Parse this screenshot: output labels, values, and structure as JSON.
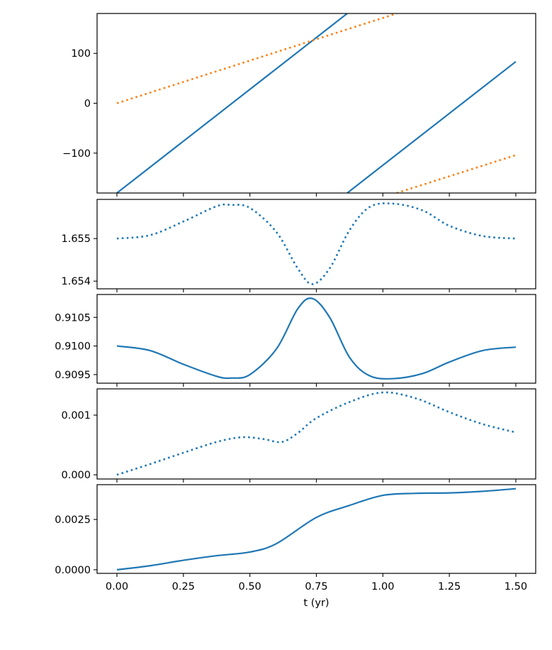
{
  "chart_data": [
    {
      "type": "line",
      "ylim": [
        -180,
        180
      ],
      "yticks": [
        100,
        0,
        -100
      ],
      "ytick_labels": [
        "100",
        "0",
        "−100"
      ],
      "series": [
        {
          "color": "#1f77b4",
          "style": "solid",
          "segments": [
            {
              "x": [
                0,
                0.866
              ],
              "y": [
                -180,
                180
              ]
            },
            {
              "x": [
                0.866,
                1.5
              ],
              "y": [
                -180,
                83.5
              ]
            }
          ]
        },
        {
          "color": "#ff7f0e",
          "style": "dotted",
          "segments": [
            {
              "x": [
                0,
                1.052
              ],
              "y": [
                0,
                180
              ]
            },
            {
              "x": [
                1.052,
                1.5
              ],
              "y": [
                -180,
                -104
              ]
            }
          ]
        }
      ]
    },
    {
      "type": "line",
      "ylim": [
        1.65382,
        1.65592
      ],
      "yticks": [
        1.655,
        1.654
      ],
      "ytick_labels": [
        "1.655",
        "1.654"
      ],
      "series": [
        {
          "color": "#1f77b4",
          "style": "dotted",
          "segments": [
            {
              "x": [
                0,
                0.125,
                0.25,
                0.375,
                0.43,
                0.5,
                0.6,
                0.68,
                0.735,
                0.8,
                0.875,
                0.95,
                1.04,
                1.15,
                1.25,
                1.375,
                1.5
              ],
              "y": [
                1.655,
                1.65508,
                1.6554,
                1.65576,
                1.65579,
                1.65572,
                1.65515,
                1.6543,
                1.65393,
                1.6543,
                1.6552,
                1.65574,
                1.65582,
                1.65566,
                1.6553,
                1.65506,
                1.655
              ]
            }
          ]
        }
      ]
    },
    {
      "type": "line",
      "ylim": [
        0.90935,
        0.9109
      ],
      "yticks": [
        0.9105,
        0.91,
        0.9095
      ],
      "ytick_labels": [
        "0.9105",
        "0.9100",
        "0.9095"
      ],
      "series": [
        {
          "color": "#1f77b4",
          "style": "solid",
          "segments": [
            {
              "x": [
                0,
                0.125,
                0.25,
                0.375,
                0.43,
                0.5,
                0.6,
                0.68,
                0.735,
                0.8,
                0.875,
                0.95,
                1.04,
                1.15,
                1.25,
                1.375,
                1.5
              ],
              "y": [
                0.91,
                0.90992,
                0.90968,
                0.90947,
                0.90944,
                0.9095,
                0.90995,
                0.91065,
                0.91083,
                0.9105,
                0.9098,
                0.90948,
                0.90943,
                0.90952,
                0.90972,
                0.90992,
                0.90998
              ]
            }
          ]
        }
      ]
    },
    {
      "type": "line",
      "ylim": [
        -7e-05,
        0.00144
      ],
      "yticks": [
        0.001,
        0.0
      ],
      "ytick_labels": [
        "0.001",
        "0.000"
      ],
      "series": [
        {
          "color": "#1f77b4",
          "style": "dotted",
          "segments": [
            {
              "x": [
                0,
                0.125,
                0.25,
                0.375,
                0.47,
                0.55,
                0.62,
                0.68,
                0.75,
                0.875,
                1.0,
                1.125,
                1.25,
                1.375,
                1.5
              ],
              "y": [
                0,
                0.00018,
                0.00037,
                0.00055,
                0.00063,
                0.0006,
                0.00055,
                0.0007,
                0.00095,
                0.00122,
                0.00138,
                0.00128,
                0.00105,
                0.00085,
                0.00071
              ]
            }
          ]
        }
      ]
    },
    {
      "type": "line",
      "ylim": [
        -0.00018,
        0.00423
      ],
      "yticks": [
        0.0025,
        0.0
      ],
      "ytick_labels": [
        "0.0025",
        "0.0000"
      ],
      "xlabel": "t (yr)",
      "xticks": [
        0,
        0.25,
        0.5,
        0.75,
        1.0,
        1.25,
        1.5
      ],
      "xtick_labels": [
        "0.00",
        "0.25",
        "0.50",
        "0.75",
        "1.00",
        "1.25",
        "1.50"
      ],
      "series": [
        {
          "color": "#1f77b4",
          "style": "solid",
          "segments": [
            {
              "x": [
                0,
                0.125,
                0.25,
                0.375,
                0.5,
                0.6,
                0.75,
                0.875,
                1.0,
                1.125,
                1.25,
                1.375,
                1.5
              ],
              "y": [
                0,
                0.0002,
                0.00047,
                0.0007,
                0.00088,
                0.0013,
                0.0026,
                0.0032,
                0.0037,
                0.0038,
                0.00382,
                0.0039,
                0.00403
              ]
            }
          ]
        }
      ]
    }
  ]
}
